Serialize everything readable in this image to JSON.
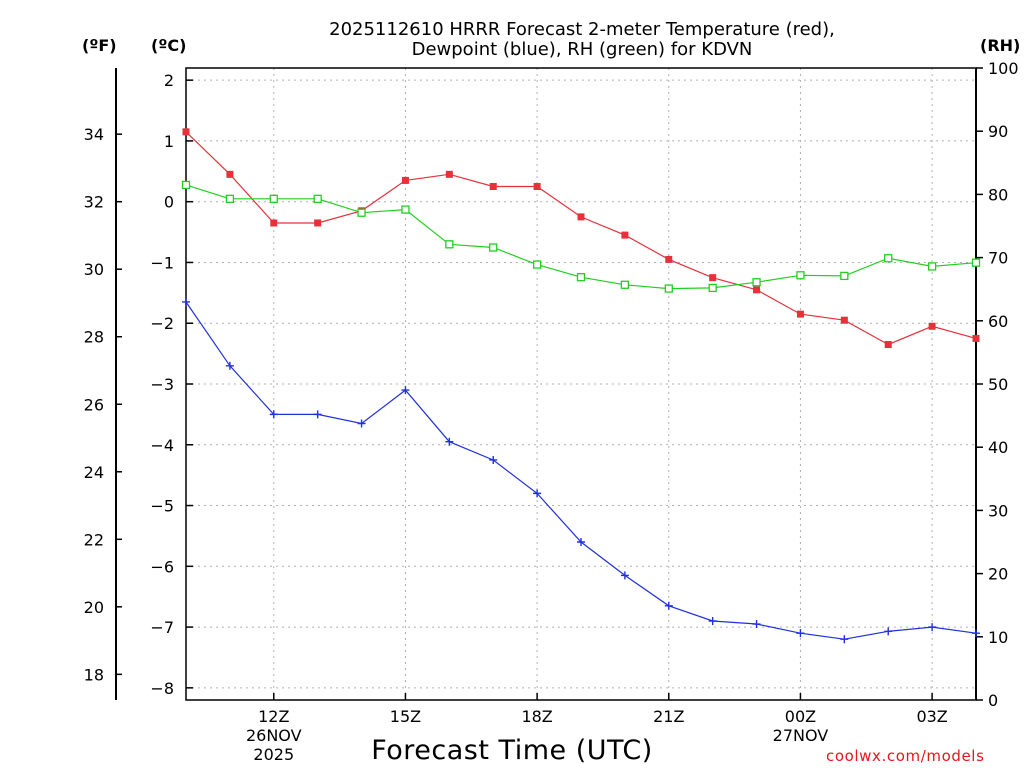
{
  "title_line1": "2025112610 HRRR Forecast 2-meter Temperature (red),",
  "title_line2": "Dewpoint (blue), RH (green) for KDVN",
  "unit_f": "(ºF)",
  "unit_c": "(ºC)",
  "unit_rh": "(RH)",
  "credit": "coolwx.com/models",
  "chart_data": {
    "type": "line",
    "title": "2025112610 HRRR Forecast 2-meter Temperature (red), Dewpoint (blue), RH (green) for KDVN",
    "xlabel": "Forecast Time (UTC)",
    "x_hours_utc": [
      10,
      11,
      12,
      13,
      14,
      15,
      16,
      17,
      18,
      19,
      20,
      21,
      22,
      23,
      24,
      25,
      26,
      27,
      28
    ],
    "xlim_hours": [
      10,
      28
    ],
    "x_ticks": [
      {
        "hour": 12,
        "label": "12Z",
        "date": "26NOV",
        "year": "2025"
      },
      {
        "hour": 15,
        "label": "15Z"
      },
      {
        "hour": 18,
        "label": "18Z"
      },
      {
        "hour": 21,
        "label": "21Z"
      },
      {
        "hour": 24,
        "label": "00Z",
        "date": "27NOV"
      },
      {
        "hour": 27,
        "label": "03Z"
      }
    ],
    "ylim_c": [
      -8.2,
      2.2
    ],
    "y_ticks_c": [
      2,
      1,
      0,
      -1,
      -2,
      -3,
      -4,
      -5,
      -6,
      -7,
      -8
    ],
    "y_ticks_f": [
      34,
      32,
      30,
      28,
      26,
      24,
      22,
      20,
      18
    ],
    "y2lim_rh": [
      0,
      100
    ],
    "y2_ticks_rh": [
      100,
      90,
      80,
      70,
      60,
      50,
      40,
      30,
      20,
      10,
      0
    ],
    "series": [
      {
        "name": "Temperature (°C)",
        "color": "#e8303a",
        "marker": "filled-square",
        "axis": "C",
        "values": [
          1.15,
          0.45,
          -0.35,
          -0.35,
          -0.15,
          0.35,
          0.45,
          0.25,
          0.25,
          -0.25,
          -0.55,
          -0.95,
          -1.25,
          -1.45,
          -1.85,
          -1.95,
          -2.35,
          -2.05,
          -2.25
        ]
      },
      {
        "name": "Dewpoint (°C)",
        "color": "#2030e0",
        "marker": "plus",
        "axis": "C",
        "values": [
          -1.65,
          -2.7,
          -3.5,
          -3.5,
          -3.65,
          -3.1,
          -3.95,
          -4.25,
          -4.8,
          -5.6,
          -6.15,
          -6.65,
          -6.9,
          -6.95,
          -7.1,
          -7.2,
          -7.07,
          -7.0,
          -7.1
        ]
      },
      {
        "name": "RH (%)",
        "color": "#20d020",
        "marker": "open-square",
        "axis": "RH",
        "values": [
          81.5,
          79.3,
          79.3,
          79.3,
          77.1,
          77.6,
          72.1,
          71.6,
          68.9,
          66.9,
          65.7,
          65.1,
          65.2,
          66.1,
          67.2,
          67.1,
          69.9,
          68.6,
          69.2
        ]
      }
    ]
  }
}
